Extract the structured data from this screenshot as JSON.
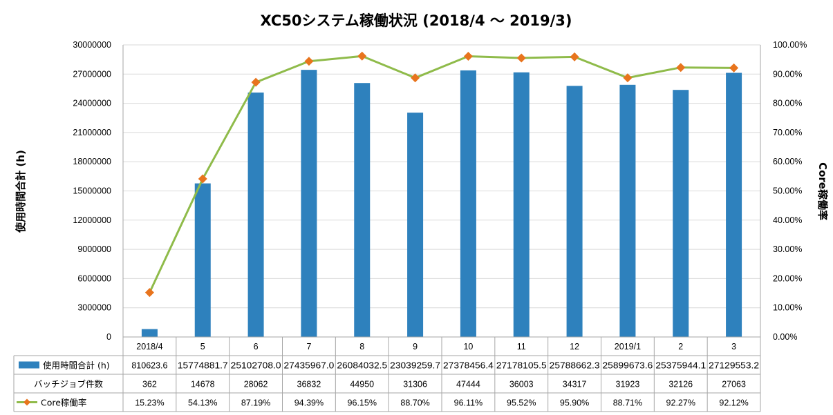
{
  "chart_data": {
    "type": "bar",
    "title": "XC50システム稼働状況 (2018/4 〜 2019/3)",
    "ylabel": "使用時間合計 (h)",
    "y2label": "Core稼働率",
    "ylim": [
      0,
      30000000
    ],
    "y2lim": [
      0,
      1
    ],
    "yticks": [
      "0",
      "3000000",
      "6000000",
      "9000000",
      "12000000",
      "15000000",
      "18000000",
      "21000000",
      "24000000",
      "27000000",
      "30000000"
    ],
    "y2ticks": [
      "0.00%",
      "10.00%",
      "20.00%",
      "30.00%",
      "40.00%",
      "50.00%",
      "60.00%",
      "70.00%",
      "80.00%",
      "90.00%",
      "100.00%"
    ],
    "grid": true,
    "categories": [
      "2018/4",
      "5",
      "6",
      "7",
      "8",
      "9",
      "10",
      "11",
      "12",
      "2019/1",
      "2",
      "3"
    ],
    "series": [
      {
        "name": "使用時間合計 (h)",
        "type": "bar",
        "axis": "left",
        "color": "#2e81bd",
        "values": [
          810623.6,
          15774881.7,
          25102708.0,
          27435967.0,
          26084032.5,
          23039259.7,
          27378456.4,
          27178105.5,
          25788662.3,
          25899673.6,
          25375944.1,
          27129553.2
        ],
        "labels": [
          "810623.6",
          "15774881.7",
          "25102708.0",
          "27435967.0",
          "26084032.5",
          "23039259.7",
          "27378456.4",
          "27178105.5",
          "25788662.3",
          "25899673.6",
          "25375944.1",
          "27129553.2"
        ]
      },
      {
        "name": "バッチジョブ件数",
        "type": "table-only",
        "values": [
          362,
          14678,
          28062,
          36832,
          44950,
          31306,
          47444,
          36003,
          34317,
          31923,
          32126,
          27063
        ],
        "labels": [
          "362",
          "14678",
          "28062",
          "36832",
          "44950",
          "31306",
          "47444",
          "36003",
          "34317",
          "31923",
          "32126",
          "27063"
        ]
      },
      {
        "name": "Core稼働率",
        "type": "line",
        "axis": "right",
        "color": "#8fbb4a",
        "marker_color": "#e8741d",
        "values": [
          0.1523,
          0.5413,
          0.8719,
          0.9439,
          0.9615,
          0.887,
          0.9611,
          0.9552,
          0.959,
          0.8871,
          0.9227,
          0.9212
        ],
        "labels": [
          "15.23%",
          "54.13%",
          "87.19%",
          "94.39%",
          "96.15%",
          "88.70%",
          "96.11%",
          "95.52%",
          "95.90%",
          "88.71%",
          "92.27%",
          "92.12%"
        ]
      }
    ],
    "legend": "data-table"
  }
}
